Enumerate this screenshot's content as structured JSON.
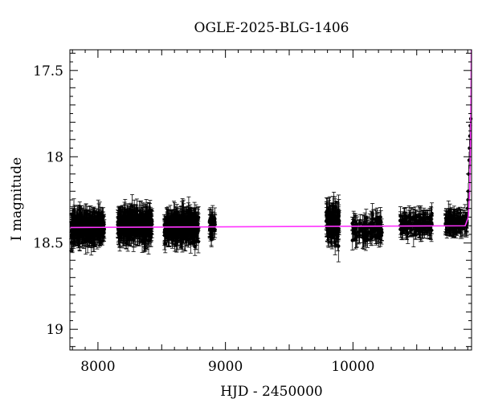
{
  "chart_data": {
    "type": "scatter",
    "title": "OGLE-2025-BLG-1406",
    "xlabel": "HJD - 2450000",
    "ylabel": "I magnitude",
    "xlim": [
      7780,
      10930
    ],
    "ylim": [
      19.12,
      17.38
    ],
    "y_inverted": true,
    "grid": false,
    "x_major_ticks": [
      8000,
      9000,
      10000
    ],
    "x_tick_labels": [
      "8000",
      "9000",
      "10000"
    ],
    "y_major_ticks": [
      17.5,
      18,
      18.5,
      19
    ],
    "y_tick_labels": [
      "17.5",
      "18",
      "18.5",
      "19"
    ],
    "colors": {
      "points": "#000000",
      "model": "#ff33ff",
      "axes": "#000000"
    },
    "series": [
      {
        "type": "errorbar-points",
        "seasons": [
          {
            "x_range": [
              7790,
              8050
            ],
            "mag_mean": 18.41,
            "mag_scatter": 0.06,
            "err": 0.06,
            "n": 320
          },
          {
            "x_range": [
              8155,
              8425
            ],
            "mag_mean": 18.4,
            "mag_scatter": 0.06,
            "err": 0.06,
            "n": 340
          },
          {
            "x_range": [
              8520,
              8790
            ],
            "mag_mean": 18.41,
            "mag_scatter": 0.06,
            "err": 0.06,
            "n": 340
          },
          {
            "x_range": [
              8875,
              8920
            ],
            "mag_mean": 18.4,
            "mag_scatter": 0.05,
            "err": 0.05,
            "n": 40
          },
          {
            "x_range": [
              9790,
              9895
            ],
            "mag_mean": 18.39,
            "mag_scatter": 0.07,
            "err": 0.07,
            "n": 110
          },
          {
            "x_range": [
              9995,
              10230
            ],
            "mag_mean": 18.42,
            "mag_scatter": 0.05,
            "err": 0.05,
            "n": 110
          },
          {
            "x_range": [
              10370,
              10620
            ],
            "mag_mean": 18.39,
            "mag_scatter": 0.04,
            "err": 0.05,
            "n": 140
          },
          {
            "x_range": [
              10725,
              10895
            ],
            "mag_mean": 18.38,
            "mag_scatter": 0.04,
            "err": 0.05,
            "n": 120
          }
        ],
        "rise_points": [
          {
            "x": 10898,
            "y": 18.3
          },
          {
            "x": 10902,
            "y": 18.25
          },
          {
            "x": 10905,
            "y": 18.2
          },
          {
            "x": 10908,
            "y": 18.1
          },
          {
            "x": 10911,
            "y": 18.02
          },
          {
            "x": 10914,
            "y": 17.95
          },
          {
            "x": 10917,
            "y": 17.88
          },
          {
            "x": 10920,
            "y": 17.82
          },
          {
            "x": 10924,
            "y": 17.78
          }
        ]
      },
      {
        "type": "model-line",
        "points": [
          {
            "x": 7780,
            "y": 18.41
          },
          {
            "x": 10880,
            "y": 18.4
          },
          {
            "x": 10905,
            "y": 18.35
          },
          {
            "x": 10915,
            "y": 18.2
          },
          {
            "x": 10922,
            "y": 17.9
          },
          {
            "x": 10926,
            "y": 17.6
          },
          {
            "x": 10928,
            "y": 17.38
          }
        ]
      }
    ]
  }
}
